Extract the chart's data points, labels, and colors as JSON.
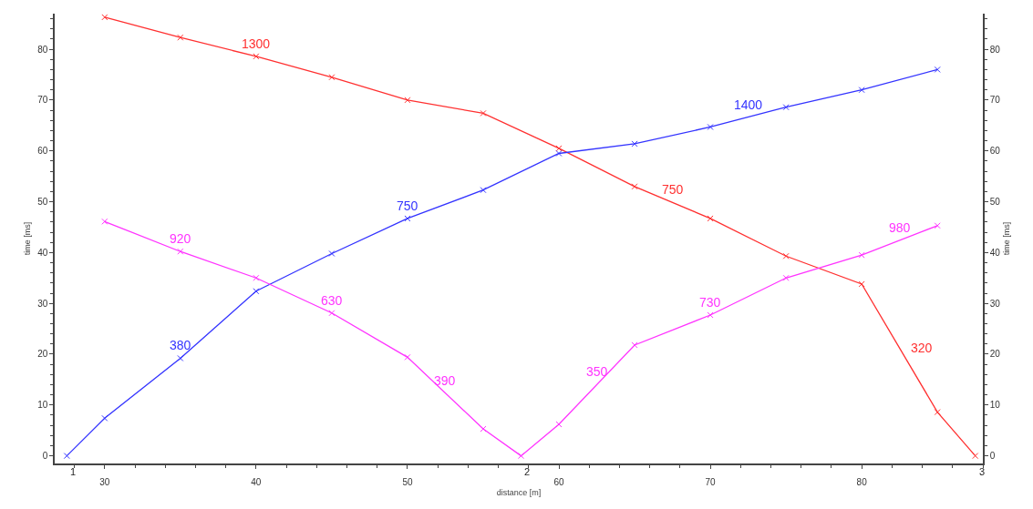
{
  "chart_data": {
    "type": "line",
    "xlabel": "distance [m]",
    "ylabel": "time [ms]",
    "y2label": "time [ms]",
    "xlim": [
      26.7,
      88
    ],
    "xticks": [
      30,
      40,
      50,
      60,
      70,
      80
    ],
    "ylim": [
      -1.5,
      87
    ],
    "yticks": [
      0,
      10,
      20,
      30,
      40,
      50,
      60,
      70,
      80
    ],
    "y2lim": [
      -1.5,
      87
    ],
    "y2ticks": [
      0,
      10,
      20,
      30,
      40,
      50,
      60,
      70,
      80
    ],
    "marker": "cross",
    "line_style": "solid",
    "grid": false,
    "series": [
      {
        "color": "#ff3030",
        "x": [
          30,
          35,
          40,
          45,
          50,
          55,
          60,
          65,
          70,
          75,
          80,
          85,
          87.5
        ],
        "values": [
          86.3,
          82.3,
          78.6,
          74.5,
          70.0,
          67.4,
          60.5,
          53.0,
          46.7,
          39.3,
          33.8,
          8.6,
          0
        ]
      },
      {
        "color": "#3333ff",
        "x": [
          27.5,
          30,
          35,
          40,
          45,
          50,
          55,
          60,
          65,
          70,
          75,
          80,
          85
        ],
        "values": [
          0,
          7.4,
          19.2,
          32.4,
          39.8,
          46.7,
          52.3,
          59.5,
          61.4,
          64.7,
          68.6,
          72.0,
          76.0
        ]
      },
      {
        "color": "#ff33ff",
        "x": [
          30,
          35,
          40,
          45,
          50,
          55,
          57.5,
          60,
          65,
          70,
          75,
          80,
          85
        ],
        "values": [
          46.1,
          40.2,
          35.0,
          28.1,
          19.4,
          5.3,
          0,
          6.2,
          21.8,
          27.7,
          35.0,
          39.5,
          45.3
        ]
      }
    ],
    "annotations": [
      {
        "text": "1300",
        "x": 40,
        "y": 78.6
      },
      {
        "text": "750",
        "x": 67.5,
        "y": 49.85
      },
      {
        "text": "320",
        "x": 82.5,
        "y": 21.2
      },
      {
        "text": "380",
        "x": 35,
        "y": 19.2
      },
      {
        "text": "750",
        "x": 50,
        "y": 46.7
      },
      {
        "text": "1400",
        "x": 72.5,
        "y": 66.65
      },
      {
        "text": "920",
        "x": 35,
        "y": 40.2
      },
      {
        "text": "630",
        "x": 45,
        "y": 28.1
      },
      {
        "text": "390",
        "x": 52.5,
        "y": 12.35
      },
      {
        "text": "350",
        "x": 62.5,
        "y": 14.0
      },
      {
        "text": "730",
        "x": 70,
        "y": 27.7
      },
      {
        "text": "980",
        "x": 82.5,
        "y": 42.4
      },
      {
        "text": "1",
        "x": 27.5,
        "y": 0
      },
      {
        "text": "2",
        "x": 57.5,
        "y": 0
      },
      {
        "text": "3",
        "x": 87.5,
        "y": 0
      }
    ]
  }
}
